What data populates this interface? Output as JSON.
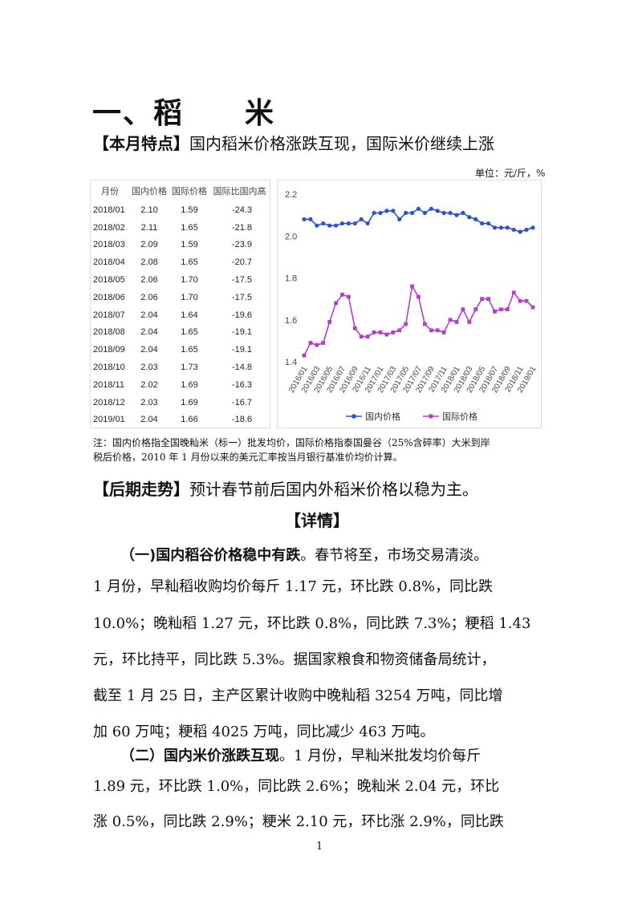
{
  "title": "一、稻　　米",
  "feature": {
    "label": "【本月特点】",
    "text": "国内稻米价格涨跌互现，国际米价继续上涨"
  },
  "unit": "单位：元/斤，%",
  "table": {
    "headers": [
      "月份",
      "国内价格",
      "国际价格",
      "国际比国内高"
    ],
    "rows": [
      [
        "2018/01",
        "2.10",
        "1.59",
        "-24.3"
      ],
      [
        "2018/02",
        "2.11",
        "1.65",
        "-21.8"
      ],
      [
        "2018/03",
        "2.09",
        "1.59",
        "-23.9"
      ],
      [
        "2018/04",
        "2.08",
        "1.65",
        "-20.7"
      ],
      [
        "2018/05",
        "2.06",
        "1.70",
        "-17.5"
      ],
      [
        "2018/06",
        "2.06",
        "1.70",
        "-17.5"
      ],
      [
        "2018/07",
        "2.04",
        "1.64",
        "-19.6"
      ],
      [
        "2018/08",
        "2.04",
        "1.65",
        "-19.1"
      ],
      [
        "2018/09",
        "2.04",
        "1.65",
        "-19.1"
      ],
      [
        "2018/10",
        "2.03",
        "1.73",
        "-14.8"
      ],
      [
        "2018/11",
        "2.02",
        "1.69",
        "-16.3"
      ],
      [
        "2018/12",
        "2.03",
        "1.69",
        "-16.7"
      ],
      [
        "2019/01",
        "2.04",
        "1.66",
        "-18.6"
      ]
    ]
  },
  "chart_data": {
    "type": "line",
    "x": [
      "2016/01",
      "2016/02",
      "2016/03",
      "2016/04",
      "2016/05",
      "2016/06",
      "2016/07",
      "2016/08",
      "2016/09",
      "2016/10",
      "2016/11",
      "2016/12",
      "2017/01",
      "2017/02",
      "2017/03",
      "2017/04",
      "2017/05",
      "2017/06",
      "2017/07",
      "2017/08",
      "2017/09",
      "2017/10",
      "2017/11",
      "2017/12",
      "2018/01",
      "2018/02",
      "2018/03",
      "2018/04",
      "2018/05",
      "2018/06",
      "2018/07",
      "2018/08",
      "2018/09",
      "2018/10",
      "2018/11",
      "2018/12",
      "2019/01"
    ],
    "x_tick_labels": [
      "2016/01",
      "2016/03",
      "2016/05",
      "2016/07",
      "2016/09",
      "2016/11",
      "2017/01",
      "2017/03",
      "2017/05",
      "2017/07",
      "2017/09",
      "2017/11",
      "2018/01",
      "2018/03",
      "2018/05",
      "2018/07",
      "2018/09",
      "2018/11",
      "2019/01"
    ],
    "series": [
      {
        "name": "国内价格",
        "color": "#2e4fd6",
        "marker": "circle",
        "values": [
          2.08,
          2.08,
          2.05,
          2.06,
          2.05,
          2.05,
          2.06,
          2.06,
          2.06,
          2.08,
          2.06,
          2.11,
          2.11,
          2.12,
          2.12,
          2.08,
          2.11,
          2.11,
          2.13,
          2.11,
          2.13,
          2.12,
          2.11,
          2.11,
          2.1,
          2.11,
          2.09,
          2.08,
          2.06,
          2.06,
          2.04,
          2.04,
          2.04,
          2.03,
          2.02,
          2.03,
          2.04
        ]
      },
      {
        "name": "国际价格",
        "color": "#b23fc9",
        "marker": "square",
        "values": [
          1.43,
          1.49,
          1.48,
          1.49,
          1.59,
          1.68,
          1.72,
          1.71,
          1.56,
          1.52,
          1.52,
          1.54,
          1.54,
          1.53,
          1.54,
          1.55,
          1.58,
          1.76,
          1.71,
          1.58,
          1.55,
          1.55,
          1.54,
          1.6,
          1.59,
          1.65,
          1.59,
          1.65,
          1.7,
          1.7,
          1.64,
          1.65,
          1.65,
          1.73,
          1.69,
          1.69,
          1.66
        ]
      }
    ],
    "ylim": [
      1.4,
      2.2
    ],
    "y_ticks": [
      "1.4",
      "1.6",
      "1.8",
      "2.0",
      "2.2"
    ],
    "grid": false,
    "legend": "bottom"
  },
  "note": {
    "line1": "注：国内价格指全国晚籼米（标一）批发均价，国际价格指泰国曼谷（25%含碎率）大米到岸",
    "line2": "税后价格，2010 年 1 月份以来的美元汇率按当月银行基准价均价计算。"
  },
  "outlook": {
    "label": "【后期走势】",
    "text": "预计春节前后国内外稻米价格以稳为主。"
  },
  "details_heading": "【详情】",
  "section1": {
    "heading": "（一)国内稻谷价格稳中有跌",
    "lines": [
      "。春节将至，市场交易清淡。",
      "1 月份，早籼稻收购均价每斤 1.17 元，环比跌 0.8%，同比跌",
      "10.0%；晚籼稻 1.27 元，环比跌 0.8%，同比跌 7.3%；粳稻 1.43",
      "元，环比持平，同比跌 5.3%。据国家粮食和物资储备局统计，",
      "截至 1 月 25 日，主产区累计收购中晚籼稻 3254 万吨，同比增",
      "加 60 万吨；粳稻 4025 万吨，同比减少 463 万吨。"
    ]
  },
  "section2": {
    "heading": "（二）国内米价涨跌互现",
    "lines": [
      "。1 月份，早籼米批发均价每斤",
      "1.89 元，环比跌 1.0%，同比跌 2.6%；晚籼米 2.04 元，环比",
      "涨 0.5%，同比跌 2.9%；粳米 2.10 元，环比涨 2.9%，同比跌"
    ]
  },
  "page_number": "1"
}
